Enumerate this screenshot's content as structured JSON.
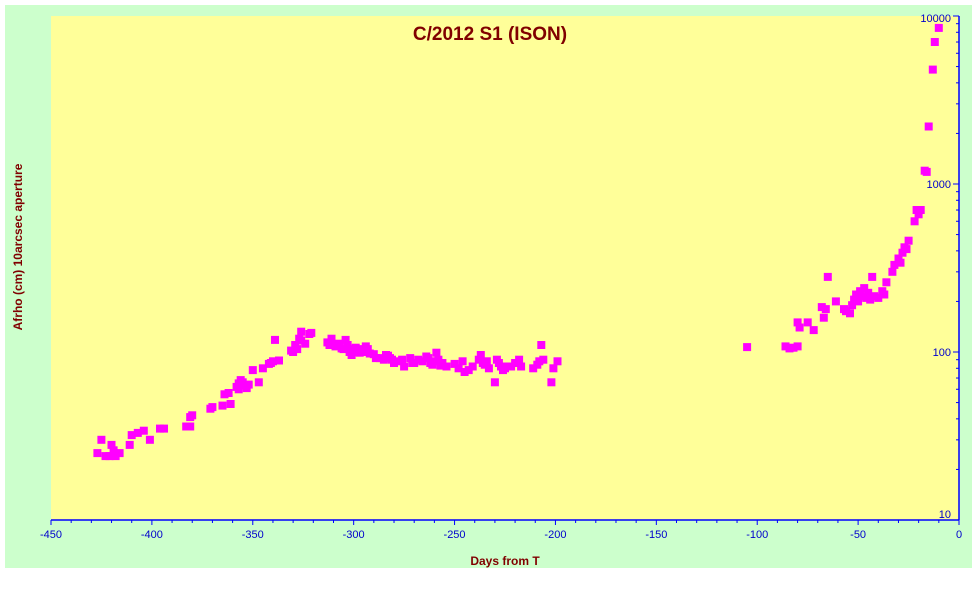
{
  "colors": {
    "background": "#ccffcc",
    "plot_area": "#ffff99",
    "marker": "#ff00ff",
    "title": "#800000",
    "axis_label": "#800000",
    "tick_label": "#0000cc",
    "axis_line": "#0000ff"
  },
  "chart_data": {
    "type": "scatter",
    "title": "C/2012 S1 (ISON)",
    "xlabel": "Days from  T",
    "ylabel": "Afrho (cm)  10arcsec aperture",
    "xlim": [
      -450,
      0
    ],
    "ylim": [
      10,
      10000
    ],
    "y_scale": "log",
    "y_axis_position": "right",
    "grid": false,
    "legend": "none",
    "x_ticks": [
      -450,
      -400,
      -350,
      -300,
      -250,
      -200,
      -150,
      -100,
      -50,
      0
    ],
    "x_tick_labels": [
      "-450",
      "-400",
      "-350",
      "-300",
      "-250",
      "-200",
      "-150",
      "-100",
      "-50",
      "0"
    ],
    "y_ticks": [
      10,
      100,
      1000,
      10000
    ],
    "y_tick_labels": [
      "10",
      "100",
      "1000",
      "10000"
    ],
    "marker": "square",
    "series": [
      {
        "points": [
          [
            -427,
            25
          ],
          [
            -425,
            30
          ],
          [
            -423,
            24
          ],
          [
            -421,
            24
          ],
          [
            -420,
            28
          ],
          [
            -419,
            26
          ],
          [
            -418,
            24
          ],
          [
            -416,
            25
          ],
          [
            -411,
            28
          ],
          [
            -410,
            32
          ],
          [
            -407,
            33
          ],
          [
            -404,
            34
          ],
          [
            -401,
            30
          ],
          [
            -396,
            35
          ],
          [
            -394,
            35
          ],
          [
            -383,
            36
          ],
          [
            -381,
            36
          ],
          [
            -381,
            41
          ],
          [
            -380,
            42
          ],
          [
            -371,
            46
          ],
          [
            -370,
            47
          ],
          [
            -365,
            48
          ],
          [
            -364,
            56
          ],
          [
            -362,
            57
          ],
          [
            -361,
            49
          ],
          [
            -358,
            62
          ],
          [
            -357,
            65
          ],
          [
            -357,
            60
          ],
          [
            -356,
            68
          ],
          [
            -355,
            66
          ],
          [
            -354,
            63
          ],
          [
            -353,
            61
          ],
          [
            -352,
            64
          ],
          [
            -350,
            78
          ],
          [
            -347,
            66
          ],
          [
            -345,
            80
          ],
          [
            -342,
            85
          ],
          [
            -341,
            86
          ],
          [
            -340,
            88
          ],
          [
            -339,
            118
          ],
          [
            -337,
            89
          ],
          [
            -331,
            102
          ],
          [
            -330,
            100
          ],
          [
            -329,
            110
          ],
          [
            -328,
            104
          ],
          [
            -327,
            120
          ],
          [
            -326,
            117
          ],
          [
            -326,
            132
          ],
          [
            -324,
            112
          ],
          [
            -322,
            128
          ],
          [
            -321,
            130
          ],
          [
            -313,
            114
          ],
          [
            -312,
            110
          ],
          [
            -311,
            120
          ],
          [
            -309,
            108
          ],
          [
            -307,
            112
          ],
          [
            -306,
            105
          ],
          [
            -305,
            104
          ],
          [
            -304,
            118
          ],
          [
            -303,
            110
          ],
          [
            -302,
            100
          ],
          [
            -301,
            96
          ],
          [
            -300,
            104
          ],
          [
            -299,
            106
          ],
          [
            -298,
            100
          ],
          [
            -297,
            99
          ],
          [
            -296,
            104
          ],
          [
            -295,
            100
          ],
          [
            -294,
            108
          ],
          [
            -293,
            104
          ],
          [
            -292,
            98
          ],
          [
            -290,
            97
          ],
          [
            -289,
            92
          ],
          [
            -287,
            92
          ],
          [
            -285,
            90
          ],
          [
            -284,
            96
          ],
          [
            -283,
            95
          ],
          [
            -282,
            92
          ],
          [
            -281,
            90
          ],
          [
            -280,
            86
          ],
          [
            -278,
            88
          ],
          [
            -276,
            90
          ],
          [
            -275,
            82
          ],
          [
            -272,
            92
          ],
          [
            -271,
            86
          ],
          [
            -270,
            86
          ],
          [
            -268,
            90
          ],
          [
            -266,
            88
          ],
          [
            -264,
            94
          ],
          [
            -263,
            92
          ],
          [
            -262,
            86
          ],
          [
            -261,
            84
          ],
          [
            -260,
            88
          ],
          [
            -259,
            99
          ],
          [
            -258,
            90
          ],
          [
            -257,
            83
          ],
          [
            -256,
            86
          ],
          [
            -254,
            82
          ],
          [
            -250,
            85
          ],
          [
            -248,
            80
          ],
          [
            -246,
            88
          ],
          [
            -245,
            76
          ],
          [
            -243,
            78
          ],
          [
            -241,
            82
          ],
          [
            -238,
            90
          ],
          [
            -237,
            96
          ],
          [
            -236,
            86
          ],
          [
            -235,
            84
          ],
          [
            -234,
            88
          ],
          [
            -233,
            80
          ],
          [
            -230,
            66
          ],
          [
            -229,
            90
          ],
          [
            -228,
            86
          ],
          [
            -227,
            82
          ],
          [
            -226,
            78
          ],
          [
            -225,
            80
          ],
          [
            -223,
            82
          ],
          [
            -222,
            82
          ],
          [
            -220,
            86
          ],
          [
            -218,
            90
          ],
          [
            -217,
            82
          ],
          [
            -211,
            80
          ],
          [
            -209,
            84
          ],
          [
            -208,
            88
          ],
          [
            -207,
            110
          ],
          [
            -206,
            90
          ],
          [
            -202,
            66
          ],
          [
            -201,
            80
          ],
          [
            -199,
            88
          ],
          [
            -105,
            107
          ],
          [
            -86,
            108
          ],
          [
            -84,
            105
          ],
          [
            -82,
            106
          ],
          [
            -80,
            108
          ],
          [
            -80,
            150
          ],
          [
            -79,
            140
          ],
          [
            -75,
            150
          ],
          [
            -72,
            135
          ],
          [
            -68,
            185
          ],
          [
            -67,
            160
          ],
          [
            -66,
            180
          ],
          [
            -65,
            280
          ],
          [
            -61,
            200
          ],
          [
            -57,
            180
          ],
          [
            -56,
            175
          ],
          [
            -54,
            170
          ],
          [
            -53,
            190
          ],
          [
            -52,
            205
          ],
          [
            -51,
            220
          ],
          [
            -50,
            200
          ],
          [
            -49,
            230
          ],
          [
            -48,
            215
          ],
          [
            -47,
            240
          ],
          [
            -46,
            210
          ],
          [
            -45,
            225
          ],
          [
            -44,
            205
          ],
          [
            -43,
            280
          ],
          [
            -42,
            215
          ],
          [
            -40,
            210
          ],
          [
            -38,
            230
          ],
          [
            -37,
            220
          ],
          [
            -36,
            260
          ],
          [
            -33,
            300
          ],
          [
            -32,
            330
          ],
          [
            -30,
            360
          ],
          [
            -29,
            340
          ],
          [
            -28,
            390
          ],
          [
            -27,
            420
          ],
          [
            -26,
            410
          ],
          [
            -25,
            460
          ],
          [
            -22,
            600
          ],
          [
            -21,
            700
          ],
          [
            -20,
            660
          ],
          [
            -19,
            700
          ],
          [
            -17,
            1200
          ],
          [
            -16,
            1180
          ],
          [
            -15,
            2200
          ],
          [
            -13,
            4800
          ],
          [
            -12,
            7000
          ],
          [
            -10,
            8500
          ]
        ]
      }
    ]
  }
}
